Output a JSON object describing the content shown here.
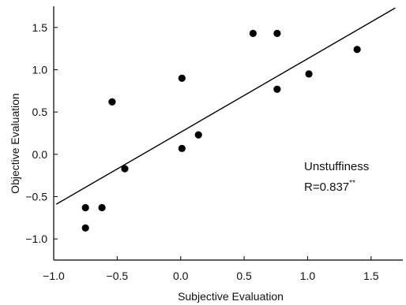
{
  "chart_data": {
    "type": "scatter",
    "xlabel": "Subjective Evaluation",
    "ylabel": "Objective Evaluation",
    "xlim": [
      -1.0,
      1.75
    ],
    "ylim": [
      -1.25,
      1.75
    ],
    "x_ticks": [
      -1.0,
      -0.5,
      0.0,
      0.5,
      1.0,
      1.5
    ],
    "x_tick_labels": [
      "−1.0",
      "−0.5",
      "0.0",
      "0.5",
      "1.0",
      "1.5"
    ],
    "y_ticks": [
      -1.0,
      -0.5,
      0.0,
      0.5,
      1.0,
      1.5
    ],
    "y_tick_labels": [
      "−1.0",
      "−0.5",
      "0.0",
      "0.5",
      "1.0",
      "1.5"
    ],
    "grid": false,
    "points": [
      {
        "x": -0.75,
        "y": -0.63
      },
      {
        "x": -0.75,
        "y": -0.87
      },
      {
        "x": -0.62,
        "y": -0.63
      },
      {
        "x": -0.54,
        "y": 0.62
      },
      {
        "x": -0.44,
        "y": -0.17
      },
      {
        "x": 0.01,
        "y": 0.9
      },
      {
        "x": 0.01,
        "y": 0.07
      },
      {
        "x": 0.14,
        "y": 0.23
      },
      {
        "x": 0.57,
        "y": 1.43
      },
      {
        "x": 0.76,
        "y": 1.43
      },
      {
        "x": 0.76,
        "y": 0.77
      },
      {
        "x": 1.01,
        "y": 0.95
      },
      {
        "x": 1.39,
        "y": 1.24
      }
    ],
    "regression_line": {
      "x": [
        -0.98,
        1.69
      ],
      "y": [
        -0.59,
        1.73
      ]
    },
    "annotation": {
      "label": "Unstuffiness",
      "stat": "R=0.837",
      "significance": "**"
    }
  }
}
